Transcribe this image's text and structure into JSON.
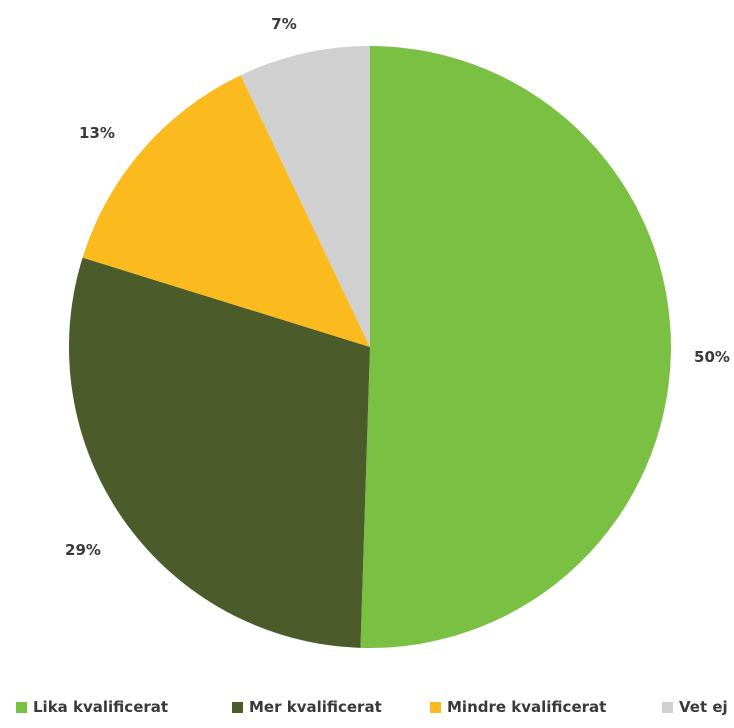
{
  "chart_data": {
    "type": "pie",
    "categories": [
      "Lika kvalificerat",
      "Mer kvalificerat",
      "Mindre kvalificerat",
      "Vet ej"
    ],
    "values": [
      50,
      29,
      13,
      7
    ],
    "labels": [
      "50%",
      "29%",
      "13%",
      "7%"
    ],
    "colors": [
      "#7ac143",
      "#4b5b2a",
      "#fbbb1f",
      "#d0d0d0"
    ],
    "start": "12 o'clock",
    "direction": "clockwise",
    "legend_position": "bottom"
  }
}
